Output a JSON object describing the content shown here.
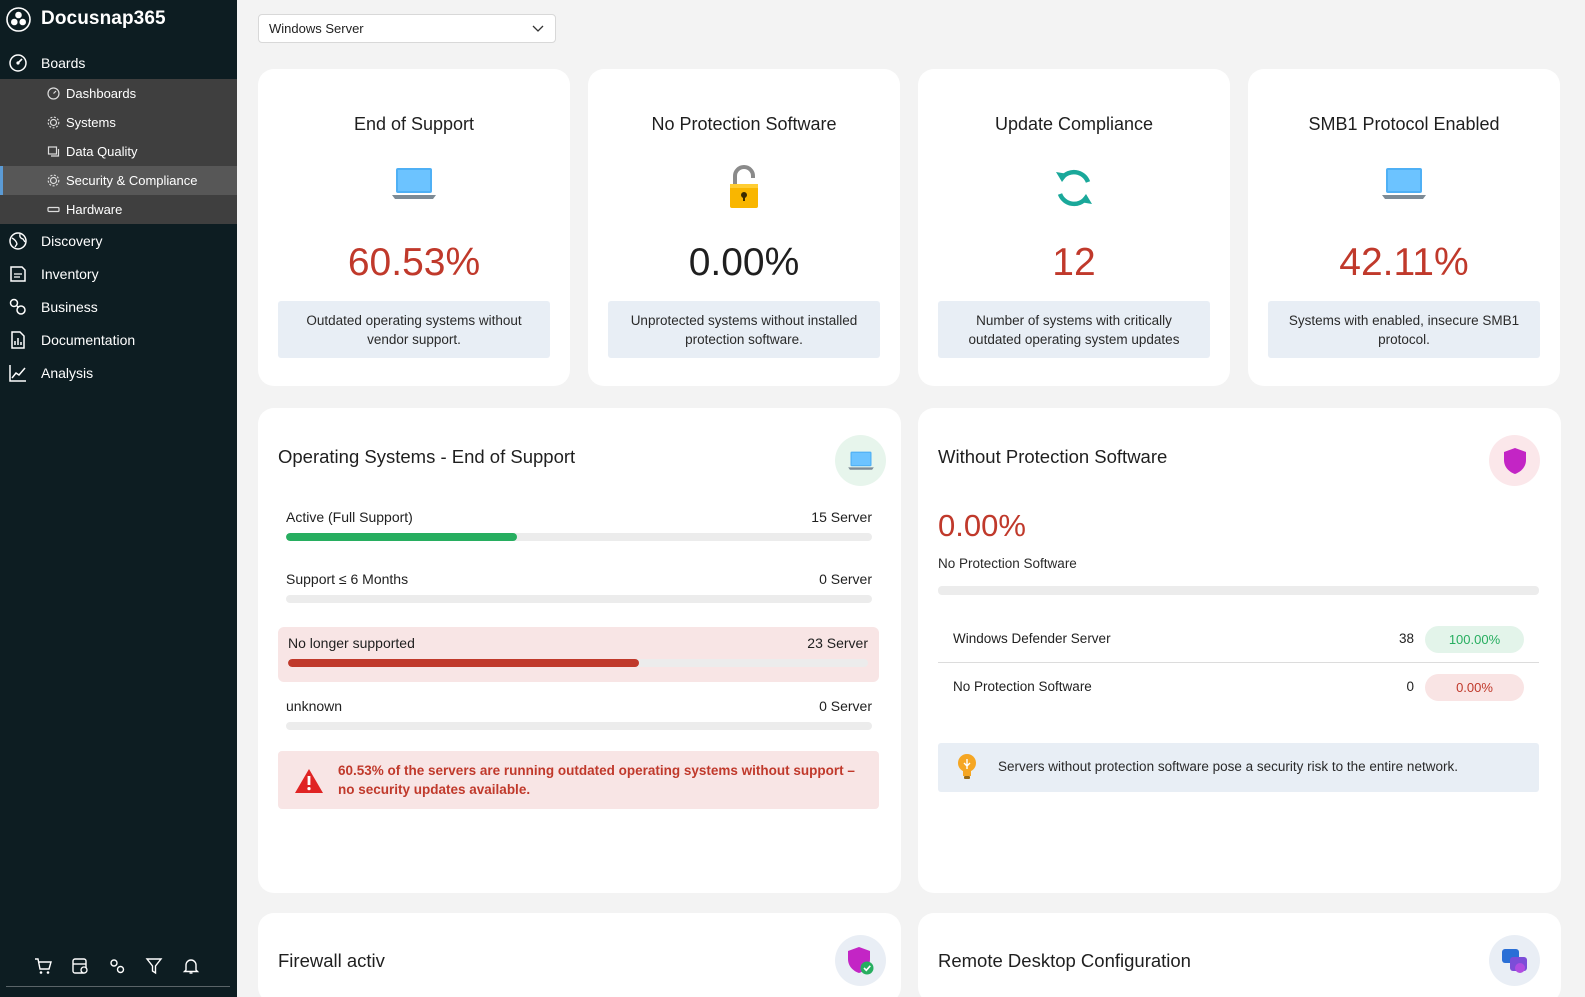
{
  "app": {
    "name": "Docusnap365"
  },
  "sidebar": {
    "boards_label": "Boards",
    "sub_items": [
      {
        "label": "Dashboards",
        "icon": "dashboard-icon"
      },
      {
        "label": "Systems",
        "icon": "gear-icon"
      },
      {
        "label": "Data Quality",
        "icon": "window-icon"
      },
      {
        "label": "Security & Compliance",
        "icon": "gear-icon",
        "active": true
      },
      {
        "label": "Hardware",
        "icon": "hardware-icon"
      }
    ],
    "items": [
      {
        "label": "Discovery"
      },
      {
        "label": "Inventory"
      },
      {
        "label": "Business"
      },
      {
        "label": "Documentation"
      },
      {
        "label": "Analysis"
      }
    ]
  },
  "filter": {
    "selected": "Windows Server"
  },
  "kpis": [
    {
      "title": "End of Support",
      "value": "60.53%",
      "description": "Outdated operating systems without vendor support.",
      "value_color": "#c0392b"
    },
    {
      "title": "No Protection Software",
      "value": "0.00%",
      "description": "Unprotected systems without installed protection software.",
      "value_color": "#1f1f1f"
    },
    {
      "title": "Update Compliance",
      "value": "12",
      "description": "Number of systems with critically outdated operating system updates",
      "value_color": "#c0392b"
    },
    {
      "title": "SMB1 Protocol Enabled",
      "value": "42.11%",
      "description": "Systems with enabled, insecure SMB1 protocol.",
      "value_color": "#c0392b"
    }
  ],
  "os_eos": {
    "title": "Operating Systems - End of Support",
    "rows": [
      {
        "label": "Active (Full Support)",
        "count": "15 Server",
        "fraction": 0.3947,
        "color": "#27ae60"
      },
      {
        "label": "Support ≤ 6 Months",
        "count": "0 Server",
        "fraction": 0,
        "color": "#f39c12"
      },
      {
        "label": "No longer supported",
        "count": "23 Server",
        "fraction": 0.6053,
        "color": "#c0392b"
      },
      {
        "label": "unknown",
        "count": "0 Server",
        "fraction": 0,
        "color": "#999999"
      }
    ],
    "alert": "60.53% of the servers are running outdated operating systems without support – no security updates available."
  },
  "protection": {
    "title": "Without Protection Software",
    "value": "0.00%",
    "subtitle": "No Protection Software",
    "rows": [
      {
        "name": "Windows Defender Server",
        "count": "38",
        "percent": "100.00%"
      },
      {
        "name": "No Protection Software",
        "count": "0",
        "percent": "0.00%"
      }
    ],
    "tip": "Servers without protection software pose a security risk to the entire network."
  },
  "firewall": {
    "title": "Firewall activ"
  },
  "rdp": {
    "title": "Remote Desktop Configuration"
  }
}
